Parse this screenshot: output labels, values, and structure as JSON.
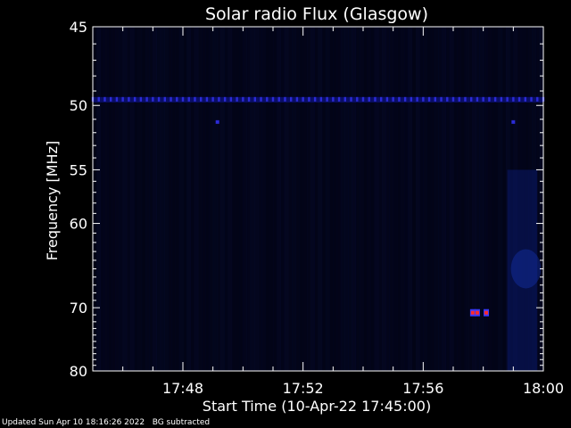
{
  "chart_data": {
    "type": "heatmap",
    "title": "Solar radio Flux (Glasgow)",
    "xlabel": "Start Time (10-Apr-22 17:45:00)",
    "ylabel": "Frequency [MHz]",
    "x_ticks": [
      "17:48",
      "17:52",
      "17:56",
      "18:00"
    ],
    "x_tick_minutes": [
      3,
      7,
      11,
      15
    ],
    "xlim_minutes": [
      0,
      15
    ],
    "y_ticks": [
      45,
      50,
      55,
      60,
      70,
      80
    ],
    "ylim": [
      45,
      80
    ],
    "y_scale": "reciprocal",
    "colors": {
      "background": "#000000",
      "axes": "#ffffff",
      "band": "#2b2bd6",
      "burst": "#ff2a2a"
    },
    "features": {
      "interference_band": {
        "freq": 49.6,
        "minute_start": 0,
        "minute_end": 15,
        "dash_every_minutes": 0.2
      },
      "spots": [
        {
          "minute": 4.15,
          "freq": 51.2
        },
        {
          "minute": 14.0,
          "freq": 51.2
        }
      ],
      "bursts": [
        {
          "minute": 12.65,
          "freq": 70.7
        },
        {
          "minute": 12.8,
          "freq": 70.7
        },
        {
          "minute": 13.1,
          "freq": 70.7
        }
      ],
      "diffuse_region": {
        "minute_start": 13.8,
        "minute_end": 14.8,
        "freq_start": 55,
        "freq_end": 80
      }
    }
  },
  "footer": {
    "updated": "Updated Sun Apr 10 18:16:26 2022",
    "note": "BG subtracted"
  }
}
